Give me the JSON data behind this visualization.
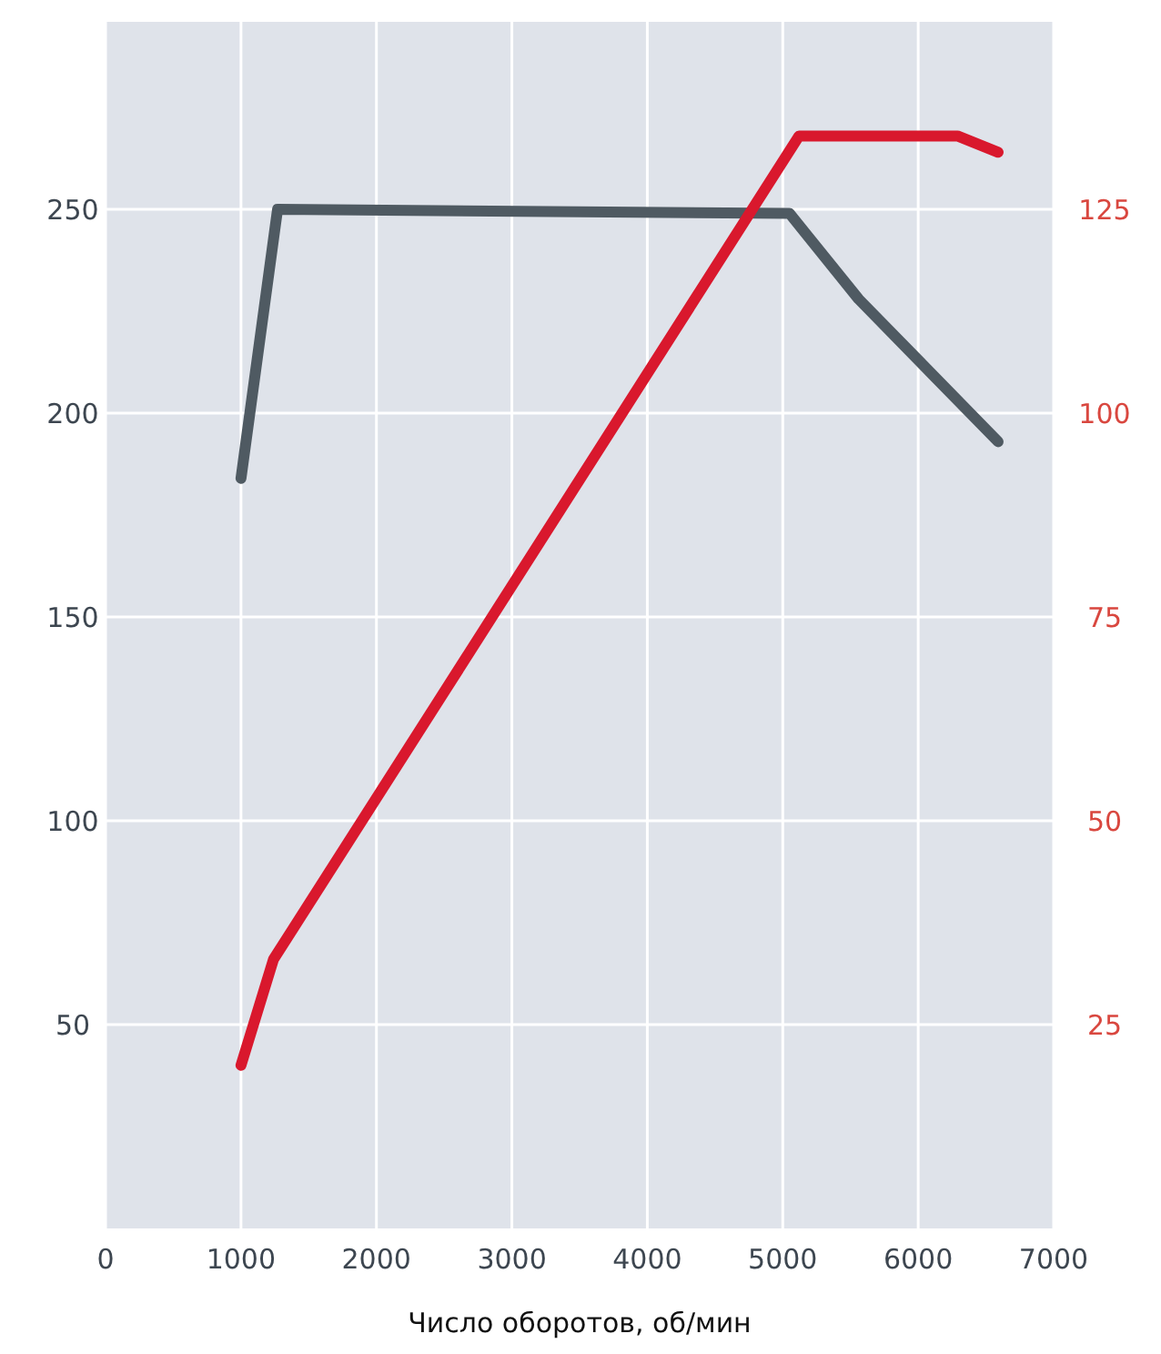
{
  "chart_data": {
    "type": "line",
    "xlabel": "Число оборотов, об/мин",
    "xlim": [
      0,
      7000
    ],
    "xticks": [
      0,
      1000,
      2000,
      3000,
      4000,
      5000,
      6000,
      7000
    ],
    "ylim": [
      0,
      296
    ],
    "yticks": [
      50,
      100,
      150,
      200,
      250
    ],
    "y2lim": [
      0,
      148
    ],
    "y2ticks": [
      25,
      50,
      75,
      100,
      125
    ],
    "grid": true,
    "series": [
      {
        "color": "#4f5a62",
        "x": [
          1000,
          1270,
          5050,
          5560,
          6590
        ],
        "values": [
          184,
          250,
          249,
          228,
          193
        ]
      },
      {
        "color": "#d9182d",
        "axis": "y2",
        "x": [
          1000,
          1240,
          5120,
          6290,
          6590
        ],
        "values": [
          20,
          33,
          134,
          134,
          132
        ]
      }
    ]
  }
}
